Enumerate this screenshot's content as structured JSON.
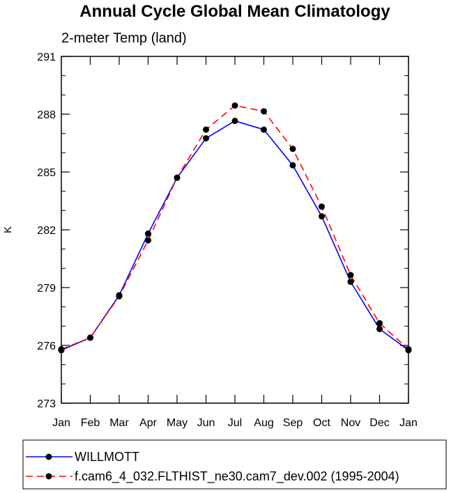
{
  "chart_data": {
    "type": "line",
    "title": "Annual Cycle Global Mean Climatology",
    "subtitle": "2-meter Temp (land)",
    "xlabel": "",
    "ylabel": "K",
    "categories": [
      "Jan",
      "Feb",
      "Mar",
      "Apr",
      "May",
      "Jun",
      "Jul",
      "Aug",
      "Sep",
      "Oct",
      "Nov",
      "Dec",
      "Jan"
    ],
    "ylim": [
      273,
      291
    ],
    "yticks": [
      273,
      276,
      279,
      282,
      285,
      288,
      291
    ],
    "grid": false,
    "legend_position": "bottom",
    "series": [
      {
        "name": "WILLMOTT",
        "color": "#0000ff",
        "dash": "solid",
        "values": [
          275.75,
          276.4,
          278.6,
          281.8,
          284.7,
          286.75,
          287.65,
          287.2,
          285.35,
          282.7,
          279.3,
          276.85,
          275.75
        ]
      },
      {
        "name": "f.cam6_4_032.FLTHIST_ne30.cam7_dev.002 (1995-2004)",
        "color": "#ff0000",
        "dash": "dashed",
        "values": [
          275.8,
          276.4,
          278.55,
          281.45,
          284.7,
          287.2,
          288.45,
          288.15,
          286.2,
          283.2,
          279.65,
          277.15,
          275.8
        ]
      }
    ]
  }
}
